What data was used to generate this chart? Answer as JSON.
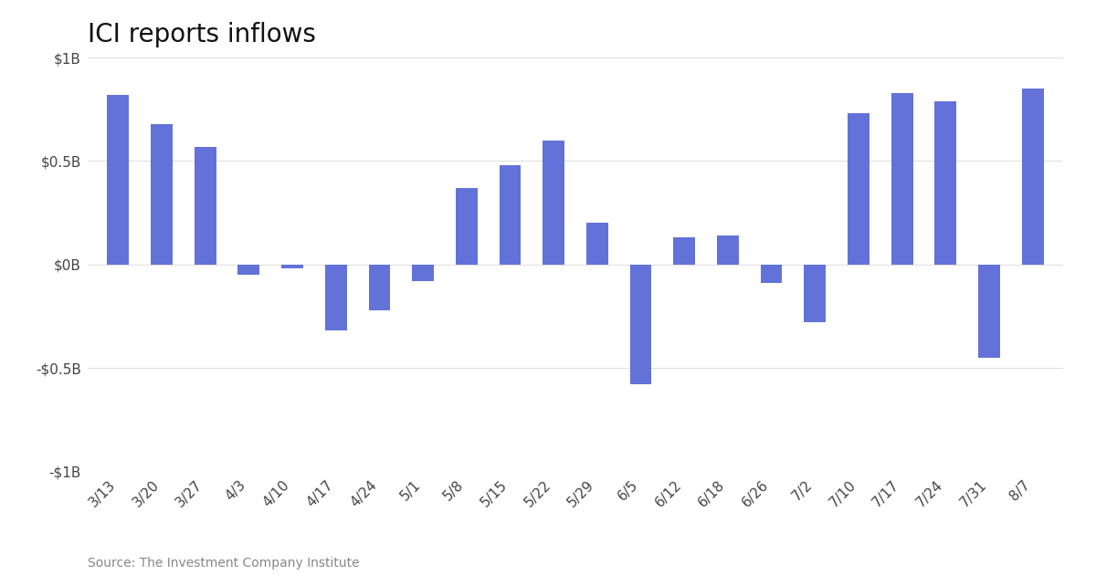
{
  "title": "ICI reports inflows",
  "categories": [
    "3/13",
    "3/20",
    "3/27",
    "4/3",
    "4/10",
    "4/17",
    "4/24",
    "5/1",
    "5/8",
    "5/15",
    "5/22",
    "5/29",
    "6/5",
    "6/12",
    "6/18",
    "6/26",
    "7/2",
    "7/10",
    "7/17",
    "7/24",
    "7/31",
    "8/7"
  ],
  "values": [
    0.82,
    0.68,
    0.57,
    -0.05,
    -0.02,
    -0.32,
    -0.22,
    -0.08,
    0.37,
    0.48,
    0.6,
    0.2,
    -0.58,
    0.13,
    0.14,
    -0.09,
    -0.28,
    0.73,
    0.83,
    0.79,
    -0.45,
    0.85
  ],
  "bar_color": "#6272d9",
  "background_color": "#ffffff",
  "grid_color": "#e0e0e0",
  "ylim": [
    -1.0,
    1.0
  ],
  "yticks": [
    -1.0,
    -0.5,
    0.0,
    0.5,
    1.0
  ],
  "ytick_labels": [
    "-$1B",
    "-$0.5B",
    "$0B",
    "$0.5B",
    "$1B"
  ],
  "source_text": "Source: The Investment Company Institute",
  "title_fontsize": 20,
  "axis_fontsize": 11,
  "source_fontsize": 10
}
